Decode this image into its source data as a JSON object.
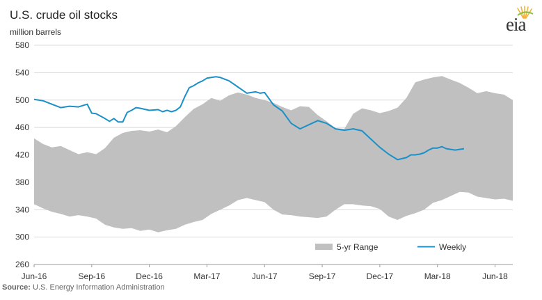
{
  "header": {
    "title": "U.S. crude oil stocks",
    "unit_label": "million barrels",
    "logo_text": "eia"
  },
  "footer": {
    "source_label": "Source:",
    "source_text": "U.S. Energy Information Administration"
  },
  "colors": {
    "range_fill": "#c0c0c0",
    "weekly_line": "#1b90c8",
    "gridline": "#d9d9d9",
    "axis": "#999999"
  },
  "chart_data": {
    "type": "area",
    "title": "U.S. crude oil stocks",
    "ylabel": "million barrels",
    "xlabel": "",
    "ylim": [
      260,
      580
    ],
    "yticks": [
      260,
      300,
      340,
      380,
      420,
      460,
      500,
      540,
      580
    ],
    "x_unit": "weeks since Jun-16",
    "xlim": [
      0,
      108
    ],
    "xticks": [
      {
        "label": "Jun-16",
        "x": 0
      },
      {
        "label": "Sep-16",
        "x": 13
      },
      {
        "label": "Dec-16",
        "x": 26
      },
      {
        "label": "Mar-17",
        "x": 39
      },
      {
        "label": "Jun-17",
        "x": 52
      },
      {
        "label": "Sep-17",
        "x": 65
      },
      {
        "label": "Dec-17",
        "x": 78
      },
      {
        "label": "Mar-18",
        "x": 91
      },
      {
        "label": "Jun-18",
        "x": 104
      }
    ],
    "grid": "horizontal",
    "legend_position": "bottom-right",
    "series": [
      {
        "name": "5-yr Range",
        "kind": "band",
        "x": [
          0,
          2,
          4,
          6,
          8,
          10,
          12,
          14,
          16,
          18,
          20,
          22,
          24,
          26,
          28,
          30,
          32,
          34,
          36,
          38,
          40,
          42,
          44,
          46,
          48,
          50,
          52,
          54,
          56,
          58,
          60,
          62,
          64,
          66,
          68,
          70,
          72,
          74,
          76,
          78,
          80,
          82,
          84,
          86,
          88,
          90,
          92,
          94,
          96,
          98,
          100,
          102,
          104,
          106,
          108
        ],
        "upper": [
          444,
          436,
          431,
          433,
          427,
          421,
          424,
          421,
          430,
          445,
          452,
          455,
          456,
          454,
          457,
          453,
          462,
          475,
          487,
          494,
          503,
          499,
          507,
          511,
          508,
          503,
          500,
          496,
          490,
          485,
          491,
          490,
          478,
          469,
          459,
          458,
          480,
          488,
          485,
          481,
          484,
          489,
          503,
          526,
          530,
          533,
          535,
          530,
          525,
          518,
          510,
          513,
          510,
          508,
          500
        ],
        "lower": [
          348,
          342,
          337,
          334,
          330,
          332,
          330,
          327,
          318,
          314,
          312,
          313,
          309,
          311,
          307,
          310,
          312,
          318,
          322,
          325,
          334,
          340,
          346,
          354,
          357,
          354,
          351,
          340,
          333,
          332,
          330,
          329,
          328,
          330,
          340,
          348,
          348,
          346,
          345,
          341,
          330,
          325,
          331,
          335,
          340,
          350,
          354,
          360,
          366,
          365,
          359,
          357,
          355,
          356,
          353
        ]
      },
      {
        "name": "Weekly",
        "kind": "line",
        "x": [
          0,
          2,
          4,
          6,
          8,
          10,
          12,
          13,
          14,
          16,
          17,
          18,
          19,
          20,
          21,
          22,
          23,
          24,
          26,
          28,
          29,
          30,
          31,
          32,
          33,
          34,
          35,
          36,
          37,
          38,
          39,
          40,
          41,
          42,
          44,
          46,
          48,
          50,
          51,
          52,
          54,
          56,
          58,
          60,
          62,
          64,
          66,
          68,
          70,
          72,
          74,
          76,
          78,
          80,
          82,
          84,
          85,
          86,
          87,
          88,
          89,
          90,
          91,
          92,
          93,
          94,
          95,
          96,
          97
        ],
        "values": [
          501,
          499,
          494,
          489,
          491,
          490,
          494,
          481,
          480,
          473,
          469,
          473,
          468,
          468,
          482,
          485,
          489,
          488,
          485,
          486,
          483,
          485,
          483,
          485,
          490,
          505,
          518,
          521,
          525,
          528,
          532,
          533,
          534,
          533,
          528,
          519,
          510,
          512,
          510,
          511,
          493,
          484,
          466,
          458,
          464,
          470,
          466,
          458,
          456,
          458,
          455,
          443,
          431,
          421,
          413,
          416,
          420,
          420,
          421,
          423,
          427,
          430,
          430,
          432,
          429,
          428,
          427,
          428,
          429
        ]
      }
    ]
  }
}
